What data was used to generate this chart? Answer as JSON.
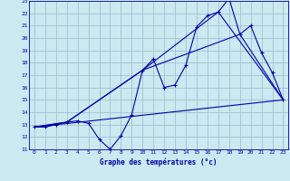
{
  "xlabel": "Graphe des températures (°c)",
  "xlim": [
    -0.5,
    23.5
  ],
  "ylim": [
    11,
    23
  ],
  "yticks": [
    11,
    12,
    13,
    14,
    15,
    16,
    17,
    18,
    19,
    20,
    21,
    22,
    23
  ],
  "xticks": [
    0,
    1,
    2,
    3,
    4,
    5,
    6,
    7,
    8,
    9,
    10,
    11,
    12,
    13,
    14,
    15,
    16,
    17,
    18,
    19,
    20,
    21,
    22,
    23
  ],
  "bg_color": "#cce8f0",
  "line_color": "#0000aa",
  "grid_color": "#99bbcc",
  "series_main": {
    "x": [
      0,
      1,
      2,
      3,
      4,
      5,
      6,
      7,
      8,
      9,
      10,
      11,
      12,
      13,
      14,
      15,
      16,
      17,
      18,
      19,
      20,
      21,
      22,
      23
    ],
    "y": [
      12.8,
      12.8,
      13.0,
      13.2,
      13.3,
      13.1,
      11.8,
      11.0,
      12.1,
      13.8,
      17.4,
      18.3,
      16.0,
      16.2,
      17.8,
      20.9,
      21.8,
      22.1,
      23.2,
      20.3,
      21.0,
      18.8,
      17.2,
      15.0
    ]
  },
  "series_extra": [
    {
      "x": [
        0,
        3,
        10,
        17,
        23
      ],
      "y": [
        12.8,
        13.2,
        17.4,
        22.1,
        15.0
      ]
    },
    {
      "x": [
        0,
        3,
        10,
        19,
        23
      ],
      "y": [
        12.8,
        13.2,
        17.4,
        20.3,
        15.0
      ]
    },
    {
      "x": [
        0,
        23
      ],
      "y": [
        12.8,
        15.0
      ]
    }
  ]
}
